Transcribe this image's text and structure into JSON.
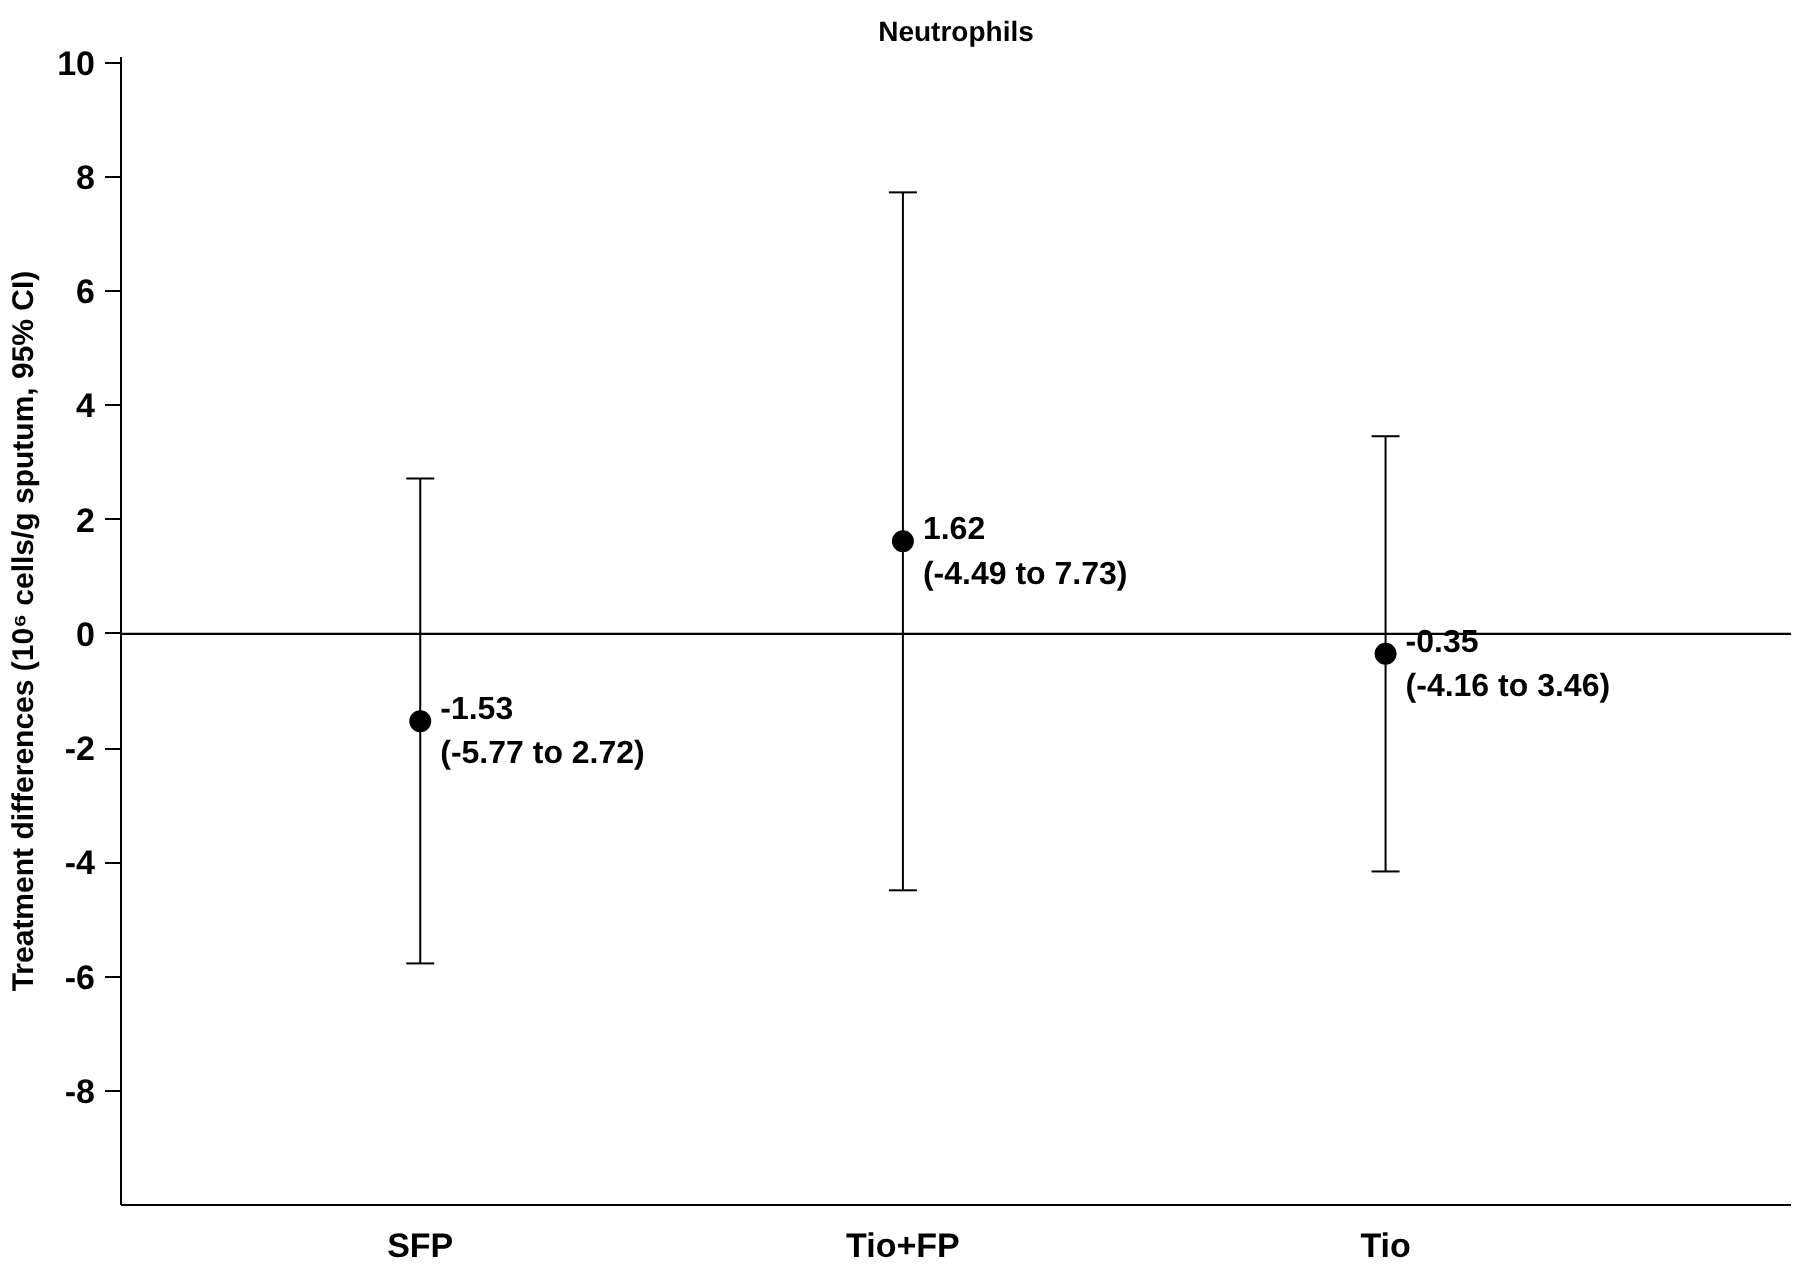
{
  "chart_data": {
    "type": "scatter",
    "title": "Neutrophils",
    "ylabel": "Treatment differences (10⁶ cells/g sputum, 95% CI)",
    "categories": [
      "SFP",
      "Tio+FP",
      "Tio"
    ],
    "values": [
      -1.53,
      1.62,
      -0.35
    ],
    "errors": [
      [
        -5.77,
        2.72
      ],
      [
        -4.49,
        7.73
      ],
      [
        -4.16,
        3.46
      ]
    ],
    "value_labels": [
      "-1.53\n(-5.77 to 2.72)",
      "1.62\n(-4.49 to 7.73)",
      "-0.35\n(-4.16 to 3.46)"
    ],
    "color": "#000000",
    "marker": "circle",
    "ylim": [
      -10,
      10.1
    ],
    "yticks": [
      -8,
      -6,
      -4,
      -2,
      0,
      2,
      4,
      6,
      8,
      10
    ],
    "ref_lines": [
      {
        "axis": "y",
        "value": 0,
        "label": null
      }
    ],
    "grid": false
  }
}
